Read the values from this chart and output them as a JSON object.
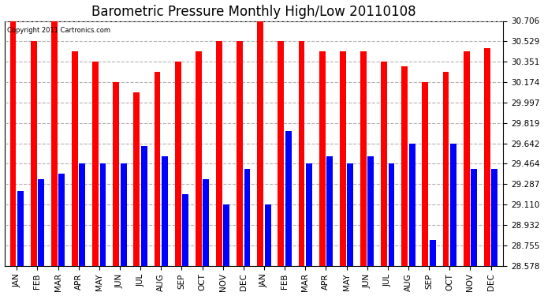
{
  "title": "Barometric Pressure Monthly High/Low 20110108",
  "copyright": "Copyright 2011 Cartronics.com",
  "months": [
    "JAN",
    "FEB",
    "MAR",
    "APR",
    "MAY",
    "JUN",
    "JUL",
    "AUG",
    "SEP",
    "OCT",
    "NOV",
    "DEC",
    "JAN",
    "FEB",
    "MAR",
    "APR",
    "MAY",
    "JUN",
    "JUL",
    "AUG",
    "SEP",
    "OCT",
    "NOV",
    "DEC"
  ],
  "highs": [
    30.706,
    30.529,
    30.706,
    30.44,
    30.351,
    30.174,
    30.085,
    30.262,
    30.351,
    30.44,
    30.529,
    30.529,
    30.706,
    30.529,
    30.529,
    30.44,
    30.44,
    30.44,
    30.351,
    30.31,
    30.174,
    30.262,
    30.44,
    30.47
  ],
  "lows": [
    29.23,
    29.33,
    29.38,
    29.464,
    29.464,
    29.464,
    29.62,
    29.53,
    29.2,
    29.33,
    29.11,
    29.42,
    29.11,
    29.752,
    29.464,
    29.53,
    29.464,
    29.53,
    29.464,
    29.642,
    28.8,
    29.642,
    29.42,
    29.42
  ],
  "yticks": [
    28.578,
    28.755,
    28.932,
    29.11,
    29.287,
    29.464,
    29.642,
    29.819,
    29.997,
    30.174,
    30.351,
    30.529,
    30.706
  ],
  "ymin": 28.578,
  "ymax": 30.706,
  "bar_color_high": "#FF0000",
  "bar_color_low": "#0000FF",
  "background_color": "#FFFFFF",
  "grid_color": "#AAAAAA",
  "title_fontsize": 12,
  "tick_fontsize": 7.5
}
